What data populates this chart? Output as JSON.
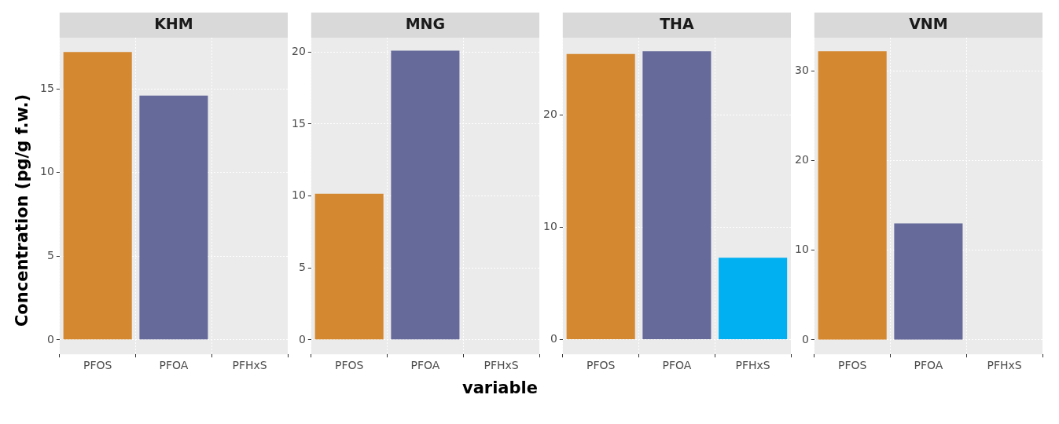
{
  "chart_data": [
    {
      "type": "bar",
      "title": "KHM",
      "ylabel": "Concentration (pg/g f.w.)",
      "categories": [
        "PFOS",
        "PFOA",
        "PFHxS"
      ],
      "values": [
        17.2,
        14.6,
        0
      ],
      "colors": [
        "#d4882f",
        "#666a9a",
        "#00b0f0"
      ],
      "ylim": [
        -0.86,
        18.06
      ],
      "yticks": [
        0,
        5,
        10,
        15
      ],
      "grid": true
    },
    {
      "type": "bar",
      "title": "MNG",
      "xlabel": "variable",
      "categories": [
        "PFOS",
        "PFOA",
        "PFHxS"
      ],
      "values": [
        10.15,
        20.1,
        0
      ],
      "colors": [
        "#d4882f",
        "#666a9a",
        "#00b0f0"
      ],
      "ylim": [
        -1.0,
        21.0
      ],
      "yticks": [
        0,
        5,
        10,
        15,
        20
      ],
      "grid": true
    },
    {
      "type": "bar",
      "title": "THA",
      "categories": [
        "PFOS",
        "PFOA",
        "PFHxS"
      ],
      "values": [
        25.45,
        25.7,
        7.3
      ],
      "colors": [
        "#d4882f",
        "#666a9a",
        "#00b0f0"
      ],
      "ylim": [
        -1.3,
        26.9
      ],
      "yticks": [
        0,
        10,
        20
      ],
      "grid": true
    },
    {
      "type": "bar",
      "title": "VNM",
      "categories": [
        "PFOS",
        "PFOA",
        "PFHxS"
      ],
      "values": [
        32.2,
        13.0,
        0
      ],
      "colors": [
        "#d4882f",
        "#666a9a",
        "#00b0f0"
      ],
      "ylim": [
        -1.6,
        33.7
      ],
      "yticks": [
        0,
        10,
        20,
        30
      ],
      "grid": true
    }
  ]
}
